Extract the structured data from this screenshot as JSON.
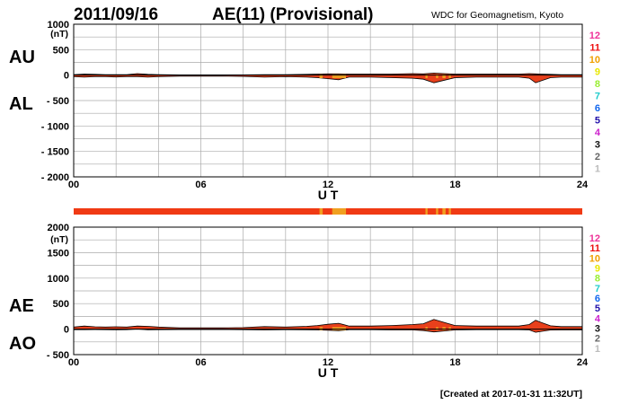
{
  "header": {
    "date": "2011/09/16",
    "title": "AE(11) (Provisional)",
    "source": "WDC for Geomagnetism, Kyoto"
  },
  "footer": {
    "created": "[Created at 2017-01-31 11:32UT]"
  },
  "colors": {
    "fill_main": "#e8401c",
    "fill_alt": "#f0a020",
    "bar_main": "#f03a14",
    "bar_alt": "#f0a020",
    "grid": "#aaaaaa",
    "line": "#000000"
  },
  "station_count_labels": [
    {
      "label": "12",
      "color": "#ee3399"
    },
    {
      "label": "11",
      "color": "#ee1111"
    },
    {
      "label": "10",
      "color": "#f0a000"
    },
    {
      "label": "9",
      "color": "#e8e800"
    },
    {
      "label": "8",
      "color": "#99ee33"
    },
    {
      "label": "7",
      "color": "#22cccc"
    },
    {
      "label": "6",
      "color": "#1166ee"
    },
    {
      "label": "5",
      "color": "#2211aa"
    },
    {
      "label": "4",
      "color": "#cc22cc"
    },
    {
      "label": "3",
      "color": "#111111"
    },
    {
      "label": "2",
      "color": "#666666"
    },
    {
      "label": "1",
      "color": "#bbbbbb"
    }
  ],
  "station_bar": {
    "orange_ranges_ut": [
      [
        11.6,
        11.75
      ],
      [
        12.2,
        12.85
      ],
      [
        16.6,
        16.7
      ],
      [
        17.1,
        17.2
      ],
      [
        17.4,
        17.55
      ],
      [
        17.7,
        17.8
      ]
    ]
  },
  "chart_data": [
    {
      "type": "area",
      "title": "AE(11) (Provisional)",
      "xlabel": "U T",
      "xlim": [
        0,
        24
      ],
      "xticks": [
        "00",
        "06",
        "12",
        "18",
        "24"
      ],
      "ylim": [
        -2000,
        1000
      ],
      "yticks": [
        "1000",
        "500",
        "0",
        "- 500",
        "- 1000",
        "- 1500",
        "- 2000"
      ],
      "yunit": "(nT)",
      "indices": [
        "AU",
        "AL"
      ],
      "grid": true,
      "x": [
        0,
        0.5,
        1,
        1.5,
        2,
        2.5,
        3,
        3.5,
        4,
        5,
        6,
        7,
        8,
        9,
        10,
        11,
        11.5,
        12,
        12.5,
        13,
        14,
        15,
        16,
        16.5,
        17,
        17.5,
        18,
        19,
        20,
        21,
        21.5,
        21.8,
        22,
        22.5,
        23,
        24
      ],
      "series": [
        {
          "name": "AU",
          "values": [
            10,
            20,
            15,
            10,
            10,
            10,
            30,
            15,
            10,
            5,
            5,
            5,
            5,
            10,
            10,
            15,
            20,
            25,
            25,
            20,
            20,
            20,
            30,
            25,
            40,
            30,
            20,
            20,
            20,
            20,
            30,
            25,
            20,
            15,
            10,
            10
          ]
        },
        {
          "name": "AL",
          "values": [
            -30,
            -40,
            -30,
            -30,
            -35,
            -30,
            -30,
            -40,
            -30,
            -20,
            -20,
            -20,
            -25,
            -40,
            -30,
            -40,
            -50,
            -70,
            -90,
            -40,
            -40,
            -50,
            -60,
            -80,
            -150,
            -100,
            -50,
            -40,
            -40,
            -40,
            -60,
            -150,
            -120,
            -50,
            -40,
            -40
          ]
        }
      ]
    },
    {
      "type": "area",
      "xlabel": "U T",
      "xlim": [
        0,
        24
      ],
      "xticks": [
        "00",
        "06",
        "12",
        "18",
        "24"
      ],
      "ylim": [
        -500,
        2000
      ],
      "yticks": [
        "2000",
        "1500",
        "1000",
        "500",
        "0",
        "- 500"
      ],
      "yunit": "(nT)",
      "indices": [
        "AE",
        "AO"
      ],
      "grid": true,
      "x": [
        0,
        0.5,
        1,
        1.5,
        2,
        2.5,
        3,
        3.5,
        4,
        5,
        6,
        7,
        8,
        9,
        10,
        11,
        11.5,
        12,
        12.5,
        13,
        14,
        15,
        16,
        16.5,
        17,
        17.5,
        18,
        19,
        20,
        21,
        21.5,
        21.8,
        22,
        22.5,
        23,
        24
      ],
      "series": [
        {
          "name": "AE",
          "values": [
            40,
            60,
            45,
            40,
            45,
            40,
            60,
            55,
            40,
            25,
            25,
            25,
            30,
            50,
            40,
            55,
            70,
            95,
            115,
            60,
            60,
            70,
            90,
            105,
            190,
            130,
            70,
            60,
            60,
            60,
            90,
            175,
            140,
            65,
            50,
            50
          ]
        },
        {
          "name": "AO",
          "values": [
            -10,
            -10,
            -8,
            -10,
            -12,
            -10,
            0,
            -12,
            -10,
            -8,
            -8,
            -8,
            -10,
            -15,
            -10,
            -12,
            -15,
            -22,
            -32,
            -10,
            -10,
            -15,
            -15,
            -28,
            -55,
            -35,
            -15,
            -10,
            -10,
            -10,
            -15,
            -62,
            -50,
            -18,
            -15,
            -15
          ]
        }
      ]
    }
  ]
}
